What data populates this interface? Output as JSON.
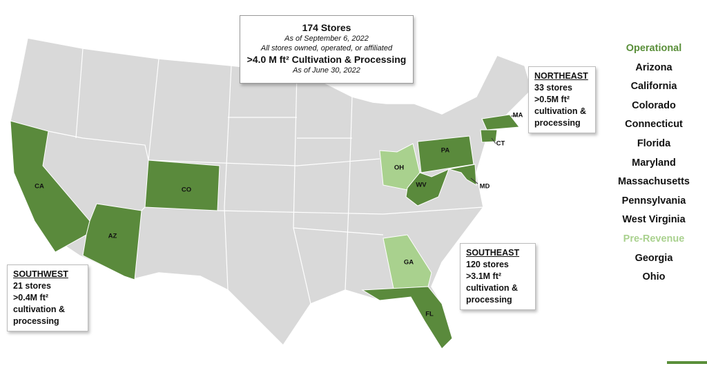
{
  "summary": {
    "stores": "174 Stores",
    "stores_date": "As of September 6, 2022",
    "stores_note": "All stores owned, operated, or affiliated",
    "cultivation": ">4.0 M ft² Cultivation & Processing",
    "cultivation_date": "As of June 30, 2022"
  },
  "regions": [
    {
      "name": "NORTHEAST",
      "stores": "33 stores",
      "area": ">0.5M ft²",
      "detail": [
        "cultivation &",
        "processing"
      ]
    },
    {
      "name": "SOUTHWEST",
      "stores": "21 stores",
      "area": ">0.4M ft²",
      "detail": [
        "cultivation &",
        "processing"
      ]
    },
    {
      "name": "SOUTHEAST",
      "stores": "120 stores",
      "area": ">3.1M ft²",
      "detail": [
        "cultivation &",
        "processing"
      ]
    }
  ],
  "state_labels": [
    "CA",
    "AZ",
    "CO",
    "OH",
    "PA",
    "WV",
    "MD",
    "MA",
    "CT",
    "GA",
    "FL"
  ],
  "legend": {
    "operational": {
      "title": "Operational",
      "states": [
        "Arizona",
        "California",
        "Colorado",
        "Connecticut",
        "Florida",
        "Maryland",
        "Massachusetts",
        "Pennsylvania",
        "West Virginia"
      ]
    },
    "pre_revenue": {
      "title": "Pre-Revenue",
      "states": [
        "Georgia",
        "Ohio"
      ]
    }
  }
}
